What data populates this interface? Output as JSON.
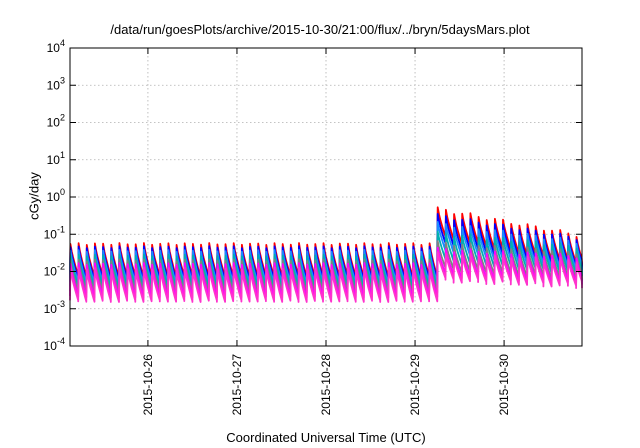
{
  "chart_data": {
    "type": "line",
    "title": "/data/run/goesPlots/archive/2015-10-30/21:00/flux/../bryn/5daysMars.plot",
    "xlabel": "Coordinated Universal Time (UTC)",
    "ylabel": "cGy/day",
    "yscale": "log",
    "ylim": [
      0.0001,
      10000
    ],
    "xlim": [
      "2015-10-25T03:00",
      "2015-10-30T21:00"
    ],
    "grid": true,
    "y_ticks": [
      {
        "base": "10",
        "exp": "-4",
        "value": 0.0001
      },
      {
        "base": "10",
        "exp": "-3",
        "value": 0.001
      },
      {
        "base": "10",
        "exp": "-2",
        "value": 0.01
      },
      {
        "base": "10",
        "exp": "-1",
        "value": 0.1
      },
      {
        "base": "10",
        "exp": "0",
        "value": 1
      },
      {
        "base": "10",
        "exp": "1",
        "value": 10
      },
      {
        "base": "10",
        "exp": "2",
        "value": 100
      },
      {
        "base": "10",
        "exp": "3",
        "value": 1000
      },
      {
        "base": "10",
        "exp": "4",
        "value": 10000
      }
    ],
    "x_ticks": [
      {
        "label": "2015-10-26",
        "value": "2015-10-26T00:00"
      },
      {
        "label": "2015-10-27",
        "value": "2015-10-27T00:00"
      },
      {
        "label": "2015-10-28",
        "value": "2015-10-28T00:00"
      },
      {
        "label": "2015-10-29",
        "value": "2015-10-29T00:00"
      },
      {
        "label": "2015-10-30",
        "value": "2015-10-30T00:00"
      }
    ],
    "series": [
      {
        "color": "#ff0000",
        "quiet": {
          "peak": 0.055,
          "trough": 0.0075
        },
        "storm": {
          "start_peak": 0.5,
          "end_peak": 0.09,
          "trough_ratio": 0.16
        }
      },
      {
        "color": "#0000ff",
        "quiet": {
          "peak": 0.045,
          "trough": 0.0062
        },
        "storm": {
          "start_peak": 0.33,
          "end_peak": 0.075,
          "trough_ratio": 0.16
        }
      },
      {
        "color": "#1a8cff",
        "quiet": {
          "peak": 0.036,
          "trough": 0.005
        },
        "storm": {
          "start_peak": 0.2,
          "end_peak": 0.06,
          "trough_ratio": 0.17
        }
      },
      {
        "color": "#00b0b0",
        "quiet": {
          "peak": 0.027,
          "trough": 0.0038
        },
        "storm": {
          "start_peak": 0.11,
          "end_peak": 0.045,
          "trough_ratio": 0.18
        }
      },
      {
        "color": "#808080",
        "quiet": {
          "peak": 0.02,
          "trough": 0.0028
        },
        "storm": {
          "start_peak": 0.06,
          "end_peak": 0.032,
          "trough_ratio": 0.19
        }
      },
      {
        "color": "#ff00ff",
        "quiet": {
          "peak": 0.016,
          "trough": 0.0021
        },
        "storm": {
          "start_peak": 0.04,
          "end_peak": 0.025,
          "trough_ratio": 0.2
        }
      },
      {
        "color": "#ff33cc",
        "quiet": {
          "peak": 0.012,
          "trough": 0.0016
        },
        "storm": {
          "start_peak": 0.03,
          "end_peak": 0.02,
          "trough_ratio": 0.2
        }
      }
    ],
    "orbit_period_hours": 2.2,
    "storm_onset": "2015-10-29T05:00"
  }
}
